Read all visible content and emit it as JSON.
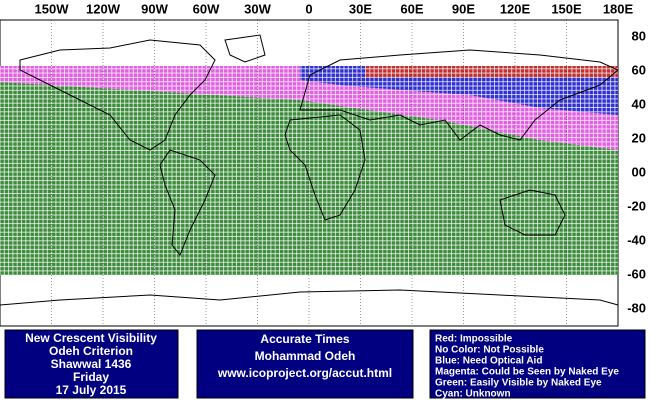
{
  "map": {
    "lon_labels": [
      "150W",
      "120W",
      "90W",
      "60W",
      "30W",
      "0",
      "30E",
      "60E",
      "90E",
      "120E",
      "150E",
      "180E"
    ],
    "lat_labels": [
      "80",
      "60",
      "40",
      "20",
      "00",
      "-20",
      "-40",
      "-60",
      "-80"
    ]
  },
  "panels": {
    "left": [
      "New Crescent Visibility",
      "Odeh Criterion",
      "Shawwal 1436",
      "Friday",
      "17 July 2015"
    ],
    "center": [
      "Accurate Times",
      "Mohammad Odeh",
      "www.icoproject.org/accut.html"
    ],
    "legend": [
      "Red: Impossible",
      "No Color: Not Possible",
      "Blue: Need Optical Aid",
      "Magenta: Could be Seen by Naked Eye",
      "Green: Easily Visible by Naked Eye",
      "Cyan: Unknown"
    ]
  }
}
